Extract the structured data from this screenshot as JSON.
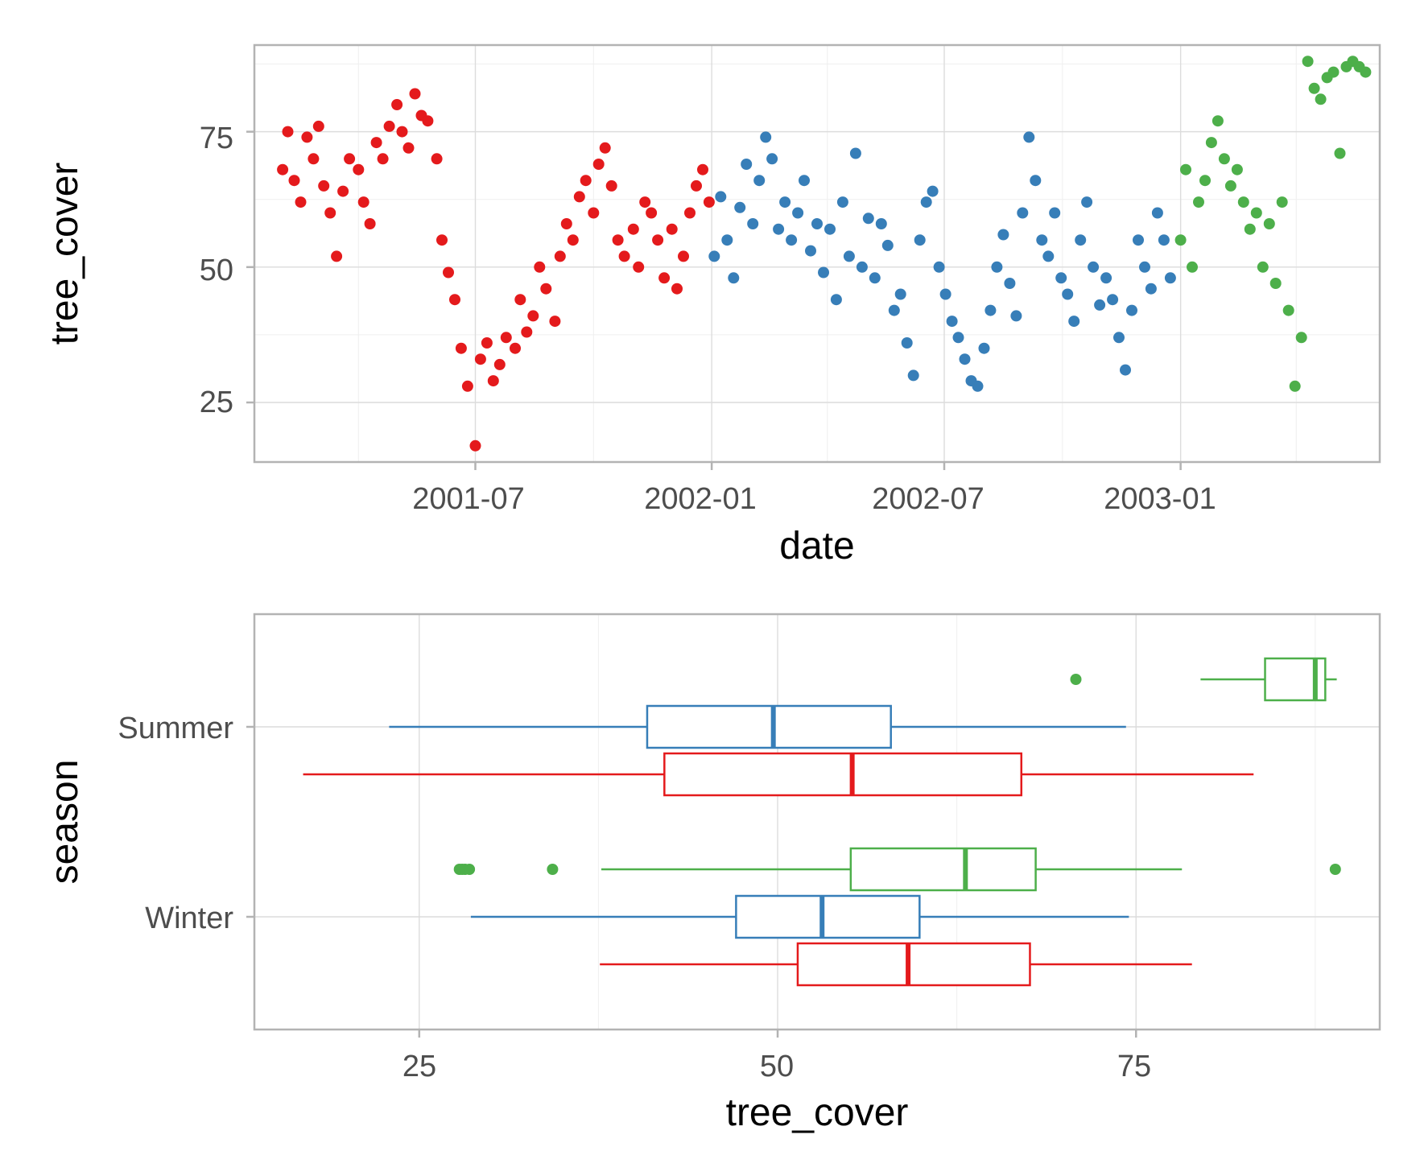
{
  "colors": {
    "red": "#e41a1c",
    "blue": "#377eb8",
    "green": "#4daf4a"
  },
  "chart_data": [
    {
      "type": "scatter",
      "title": "",
      "xlabel": "date",
      "ylabel": "tree_cover",
      "x_ticks": [
        "2001-07",
        "2002-01",
        "2002-07",
        "2003-01"
      ],
      "y_ticks": [
        "25",
        "50",
        "75"
      ],
      "xlim": [
        "2001-01-10",
        "2003-06-05"
      ],
      "ylim": [
        14,
        91
      ],
      "grid": true,
      "legend": "none",
      "series": [
        {
          "color": "#e41a1c",
          "x": [
            "2001-02-01",
            "2001-02-05",
            "2001-02-10",
            "2001-02-15",
            "2001-02-20",
            "2001-02-25",
            "2001-03-01",
            "2001-03-05",
            "2001-03-10",
            "2001-03-15",
            "2001-03-20",
            "2001-03-25",
            "2001-04-01",
            "2001-04-05",
            "2001-04-10",
            "2001-04-15",
            "2001-04-20",
            "2001-04-25",
            "2001-05-01",
            "2001-05-05",
            "2001-05-10",
            "2001-05-15",
            "2001-05-20",
            "2001-05-25",
            "2001-06-01",
            "2001-06-05",
            "2001-06-10",
            "2001-06-15",
            "2001-06-20",
            "2001-06-25",
            "2001-07-01",
            "2001-07-05",
            "2001-07-10",
            "2001-07-15",
            "2001-07-20",
            "2001-07-25",
            "2001-08-01",
            "2001-08-05",
            "2001-08-10",
            "2001-08-15",
            "2001-08-20",
            "2001-08-25",
            "2001-09-01",
            "2001-09-05",
            "2001-09-10",
            "2001-09-15",
            "2001-09-20",
            "2001-09-25",
            "2001-10-01",
            "2001-10-05",
            "2001-10-10",
            "2001-10-15",
            "2001-10-20",
            "2001-10-25",
            "2001-11-01",
            "2001-11-05",
            "2001-11-10",
            "2001-11-15",
            "2001-11-20",
            "2001-11-25",
            "2001-12-01",
            "2001-12-05",
            "2001-12-10",
            "2001-12-15",
            "2001-12-20",
            "2001-12-25",
            "2001-12-30"
          ],
          "y": [
            68,
            75,
            66,
            62,
            74,
            70,
            76,
            65,
            60,
            52,
            64,
            70,
            68,
            62,
            58,
            73,
            70,
            76,
            80,
            75,
            72,
            82,
            78,
            77,
            70,
            55,
            49,
            44,
            35,
            28,
            17,
            33,
            36,
            29,
            32,
            37,
            35,
            44,
            38,
            41,
            50,
            46,
            40,
            52,
            58,
            55,
            63,
            66,
            60,
            69,
            72,
            65,
            55,
            52,
            57,
            50,
            62,
            60,
            55,
            48,
            57,
            46,
            52,
            60,
            65,
            68,
            62
          ]
        },
        {
          "color": "#377eb8",
          "x": [
            "2002-01-03",
            "2002-01-08",
            "2002-01-13",
            "2002-01-18",
            "2002-01-23",
            "2002-01-28",
            "2002-02-02",
            "2002-02-07",
            "2002-02-12",
            "2002-02-17",
            "2002-02-22",
            "2002-02-27",
            "2002-03-04",
            "2002-03-09",
            "2002-03-14",
            "2002-03-19",
            "2002-03-24",
            "2002-03-29",
            "2002-04-03",
            "2002-04-08",
            "2002-04-13",
            "2002-04-18",
            "2002-04-23",
            "2002-04-28",
            "2002-05-03",
            "2002-05-08",
            "2002-05-13",
            "2002-05-18",
            "2002-05-23",
            "2002-05-28",
            "2002-06-02",
            "2002-06-07",
            "2002-06-12",
            "2002-06-17",
            "2002-06-22",
            "2002-06-27",
            "2002-07-02",
            "2002-07-07",
            "2002-07-12",
            "2002-07-17",
            "2002-07-22",
            "2002-07-27",
            "2002-08-01",
            "2002-08-06",
            "2002-08-11",
            "2002-08-16",
            "2002-08-21",
            "2002-08-26",
            "2002-08-31",
            "2002-09-05",
            "2002-09-10",
            "2002-09-15",
            "2002-09-20",
            "2002-09-25",
            "2002-09-30",
            "2002-10-05",
            "2002-10-10",
            "2002-10-15",
            "2002-10-20",
            "2002-10-25",
            "2002-10-30",
            "2002-11-04",
            "2002-11-09",
            "2002-11-14",
            "2002-11-19",
            "2002-11-24",
            "2002-11-29",
            "2002-12-04",
            "2002-12-09",
            "2002-12-14",
            "2002-12-19",
            "2002-12-24"
          ],
          "y": [
            52,
            63,
            55,
            48,
            61,
            69,
            58,
            66,
            74,
            70,
            57,
            62,
            55,
            60,
            66,
            53,
            58,
            49,
            57,
            44,
            62,
            52,
            71,
            50,
            59,
            48,
            58,
            54,
            42,
            45,
            36,
            30,
            55,
            62,
            64,
            50,
            45,
            40,
            37,
            33,
            29,
            28,
            35,
            42,
            50,
            56,
            47,
            41,
            60,
            74,
            66,
            55,
            52,
            60,
            48,
            45,
            40,
            55,
            62,
            50,
            43,
            48,
            44,
            37,
            31,
            42,
            55,
            50,
            46,
            60,
            55,
            48
          ]
        },
        {
          "color": "#4daf4a",
          "x": [
            "2003-01-01",
            "2003-01-05",
            "2003-01-10",
            "2003-01-15",
            "2003-01-20",
            "2003-01-25",
            "2003-01-30",
            "2003-02-04",
            "2003-02-09",
            "2003-02-14",
            "2003-02-19",
            "2003-02-24",
            "2003-03-01",
            "2003-03-06",
            "2003-03-11",
            "2003-03-16",
            "2003-03-21",
            "2003-03-26",
            "2003-03-31",
            "2003-04-05",
            "2003-04-10",
            "2003-04-15",
            "2003-04-20",
            "2003-04-25",
            "2003-04-30",
            "2003-05-05",
            "2003-05-10",
            "2003-05-15",
            "2003-05-20",
            "2003-05-25"
          ],
          "y": [
            55,
            68,
            50,
            62,
            66,
            73,
            77,
            70,
            65,
            68,
            62,
            57,
            60,
            50,
            58,
            47,
            62,
            42,
            28,
            37,
            88,
            83,
            81,
            85,
            86,
            71,
            87,
            88,
            87,
            86
          ]
        }
      ]
    },
    {
      "type": "box",
      "title": "",
      "xlabel": "tree_cover",
      "ylabel": "season",
      "categories": [
        "Summer",
        "Winter"
      ],
      "x_ticks": [
        "25",
        "50",
        "75"
      ],
      "xlim": [
        13.5,
        92
      ],
      "grid": true,
      "legend": "none",
      "boxes": [
        {
          "category": "Summer",
          "color": "#4daf4a",
          "min": 79.5,
          "q1": 84,
          "median": 87.5,
          "q3": 88.2,
          "max": 89,
          "outliers": [
            70.8
          ]
        },
        {
          "category": "Summer",
          "color": "#377eb8",
          "min": 22.9,
          "q1": 40.9,
          "median": 49.7,
          "q3": 57.9,
          "max": 74.3,
          "outliers": []
        },
        {
          "category": "Summer",
          "color": "#e41a1c",
          "min": 16.9,
          "q1": 42.1,
          "median": 55.2,
          "q3": 67.0,
          "max": 83.2,
          "outliers": []
        },
        {
          "category": "Winter",
          "color": "#4daf4a",
          "min": 37.7,
          "q1": 55.1,
          "median": 63.1,
          "q3": 68.0,
          "max": 78.2,
          "outliers": [
            27.8,
            28.0,
            28.2,
            28.5,
            34.3,
            88.9
          ]
        },
        {
          "category": "Winter",
          "color": "#377eb8",
          "min": 28.6,
          "q1": 47.1,
          "median": 53.1,
          "q3": 59.9,
          "max": 74.5,
          "outliers": []
        },
        {
          "category": "Winter",
          "color": "#e41a1c",
          "min": 37.6,
          "q1": 51.4,
          "median": 59.1,
          "q3": 67.6,
          "max": 78.9,
          "outliers": []
        }
      ]
    }
  ]
}
